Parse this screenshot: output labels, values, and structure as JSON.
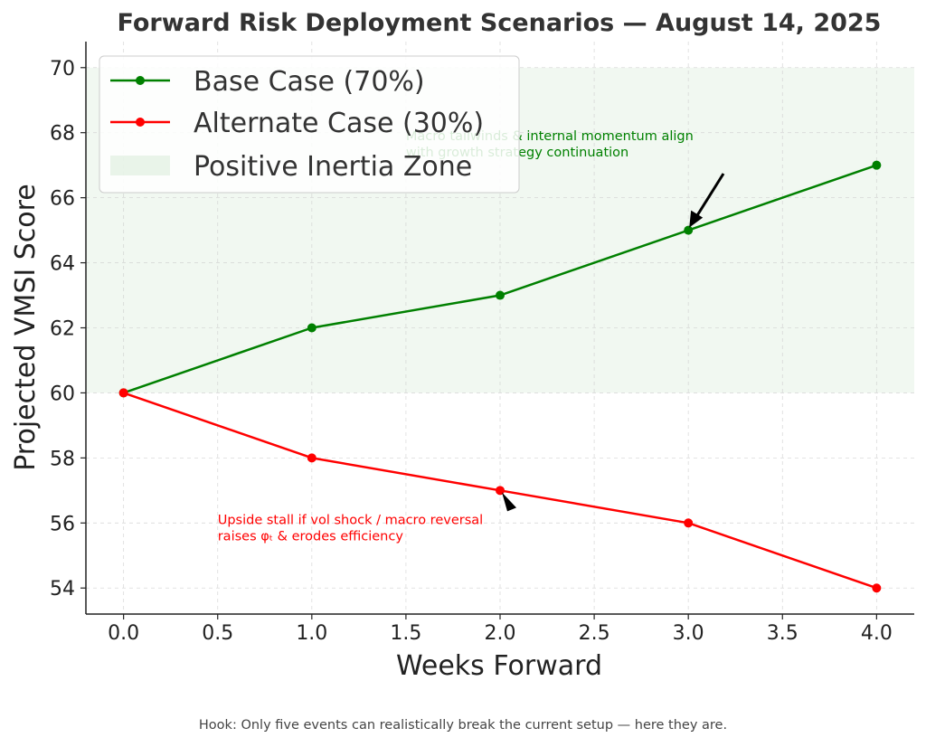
{
  "chart_data": {
    "type": "line",
    "title": "Forward Risk Deployment Scenarios — August 14, 2025",
    "xlabel": "Weeks Forward",
    "ylabel": "Projected VMSI Score",
    "xlim": [
      -0.2,
      4.2
    ],
    "ylim": [
      53.2,
      70.8
    ],
    "x_ticks": [
      "0.0",
      "0.5",
      "1.0",
      "1.5",
      "2.0",
      "2.5",
      "3.0",
      "3.5",
      "4.0"
    ],
    "y_ticks": [
      "54",
      "56",
      "58",
      "60",
      "62",
      "64",
      "66",
      "68",
      "70"
    ],
    "grid": true,
    "legend_position": "top-left",
    "x": [
      0,
      1,
      2,
      3,
      4
    ],
    "series": [
      {
        "name": "Base Case (70%)",
        "values": [
          60,
          62,
          63,
          65,
          67
        ],
        "color": "#008000"
      },
      {
        "name": "Alternate Case (30%)",
        "values": [
          60,
          58,
          57,
          56,
          54
        ],
        "color": "#ff0000"
      }
    ],
    "shaded_region": {
      "name": "Positive Inertia Zone",
      "y_range": [
        60,
        70
      ],
      "color": "#e6f2e6"
    },
    "annotations": [
      {
        "lines": [
          "Macro tailwinds & internal momentum align",
          "with growth strategy continuation"
        ],
        "color": "#008000",
        "text_at": [
          1.5,
          67.3
        ],
        "arrow_to": [
          3,
          65
        ]
      },
      {
        "lines": [
          "Upside stall if vol shock / macro reversal",
          "raises φₜ & erodes efficiency"
        ],
        "color": "#ff0000",
        "text_at": [
          0.5,
          55.5
        ],
        "arrow_to": [
          2,
          57
        ]
      }
    ]
  },
  "footer": {
    "text": "Hook: Only five events can realistically break the current setup — here they are."
  }
}
